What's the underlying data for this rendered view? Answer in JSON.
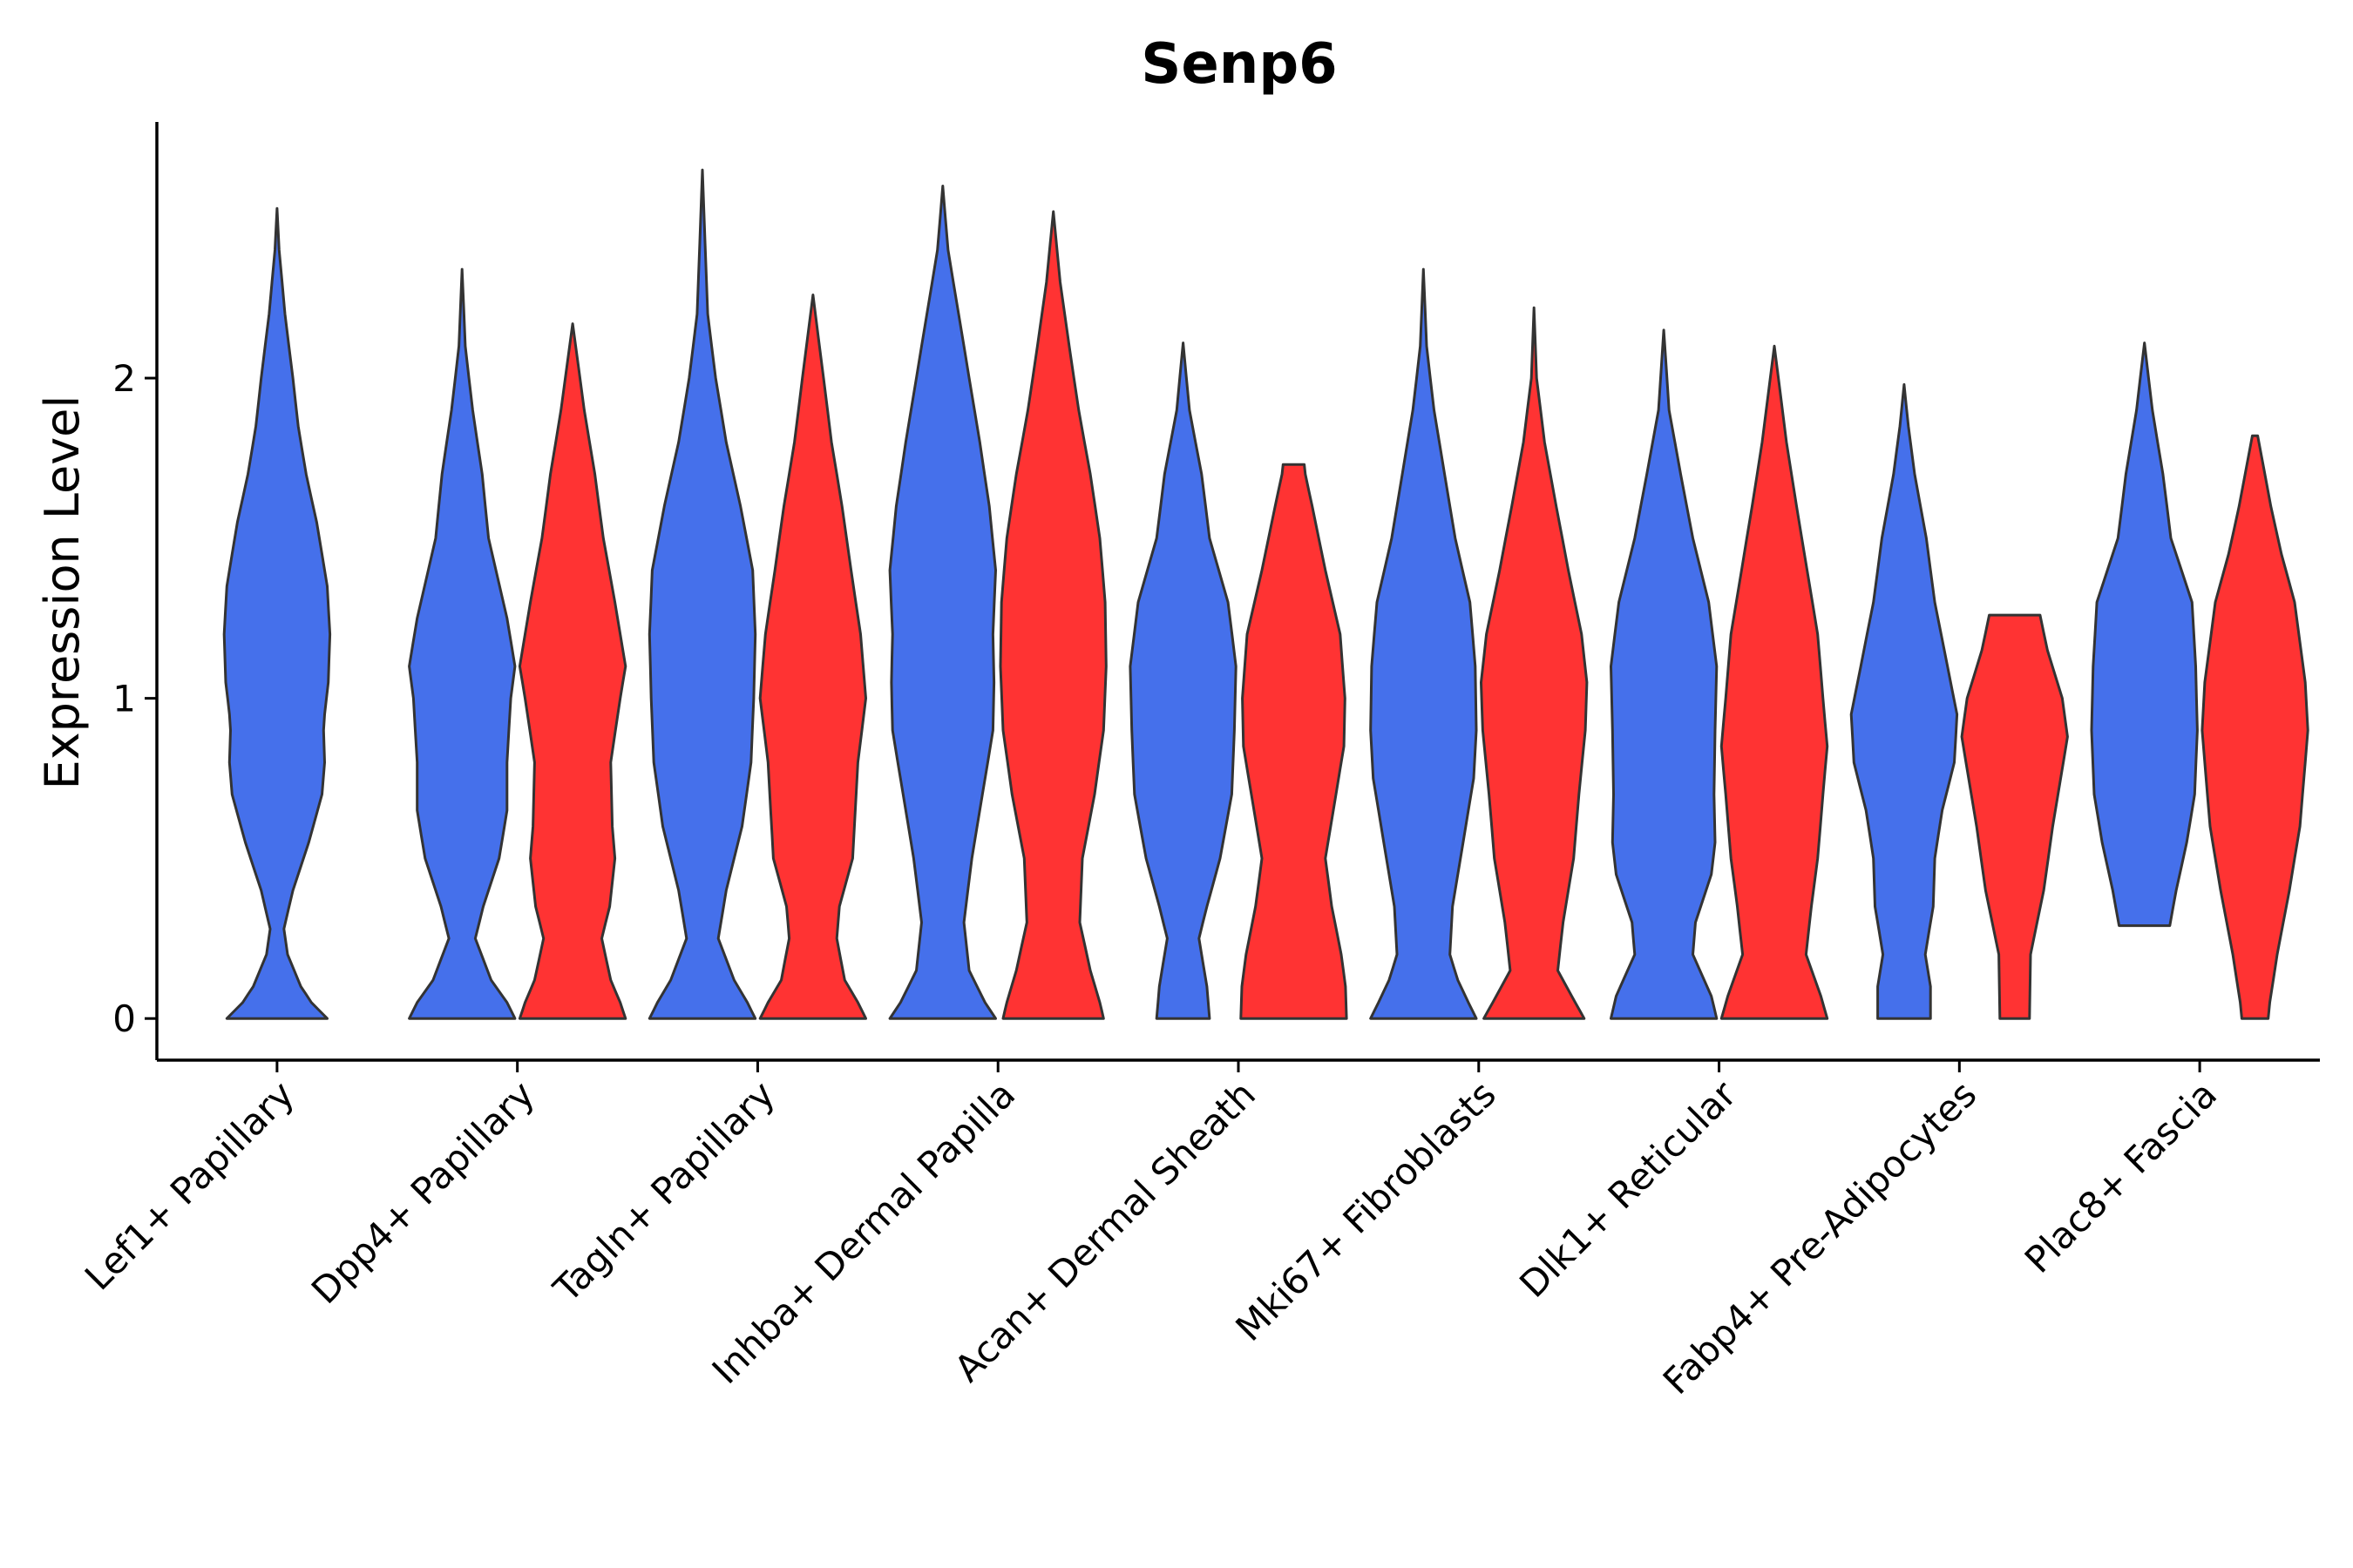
{
  "chart_data": {
    "type": "violin",
    "title": "Senp6",
    "xlabel": "",
    "ylabel": "Expression Level",
    "ylim": [
      -0.13,
      2.8
    ],
    "yticks": [
      0,
      1,
      2
    ],
    "group_colors": {
      "blue": "#4570EB",
      "red": "#FF3333"
    },
    "outline_color": "#333333",
    "categories": [
      "Lef1+ Papillary",
      "Dpp4+ Papillary",
      "Tagln+ Papillary",
      "Inhba+ Dermal Papilla",
      "Acan+ Dermal Sheath",
      "Mki67+ Fibroblasts",
      "Dlk1+ Reticular",
      "Fabp4+ Pre-Adipocytes",
      "Plac8+ Fascia"
    ],
    "violins": [
      {
        "category": "Lef1+ Papillary",
        "group": "blue",
        "min": 0,
        "max": 2.53,
        "profile": [
          [
            0,
            0.95
          ],
          [
            0.05,
            0.65
          ],
          [
            0.1,
            0.45
          ],
          [
            0.2,
            0.2
          ],
          [
            0.28,
            0.13
          ],
          [
            0.4,
            0.3
          ],
          [
            0.55,
            0.6
          ],
          [
            0.7,
            0.85
          ],
          [
            0.8,
            0.9
          ],
          [
            0.9,
            0.88
          ],
          [
            0.95,
            0.9
          ],
          [
            1.05,
            0.97
          ],
          [
            1.2,
            1.0
          ],
          [
            1.35,
            0.95
          ],
          [
            1.55,
            0.75
          ],
          [
            1.7,
            0.55
          ],
          [
            1.85,
            0.4
          ],
          [
            2.0,
            0.3
          ],
          [
            2.2,
            0.15
          ],
          [
            2.4,
            0.04
          ],
          [
            2.53,
            0.0
          ]
        ]
      },
      {
        "category": "Dpp4+ Papillary",
        "group": "blue",
        "min": 0,
        "max": 2.34,
        "profile": [
          [
            0,
            1.0
          ],
          [
            0.05,
            0.85
          ],
          [
            0.12,
            0.55
          ],
          [
            0.25,
            0.25
          ],
          [
            0.35,
            0.4
          ],
          [
            0.5,
            0.7
          ],
          [
            0.65,
            0.85
          ],
          [
            0.8,
            0.85
          ],
          [
            1.0,
            0.92
          ],
          [
            1.1,
            1.0
          ],
          [
            1.25,
            0.85
          ],
          [
            1.5,
            0.5
          ],
          [
            1.7,
            0.38
          ],
          [
            1.9,
            0.2
          ],
          [
            2.1,
            0.06
          ],
          [
            2.34,
            0.0
          ]
        ]
      },
      {
        "category": "Dpp4+ Papillary",
        "group": "red",
        "min": 0,
        "max": 2.17,
        "profile": [
          [
            0,
            1.0
          ],
          [
            0.05,
            0.9
          ],
          [
            0.12,
            0.72
          ],
          [
            0.25,
            0.55
          ],
          [
            0.35,
            0.7
          ],
          [
            0.5,
            0.8
          ],
          [
            0.6,
            0.75
          ],
          [
            0.8,
            0.72
          ],
          [
            1.0,
            0.9
          ],
          [
            1.1,
            1.0
          ],
          [
            1.3,
            0.8
          ],
          [
            1.5,
            0.58
          ],
          [
            1.7,
            0.42
          ],
          [
            1.9,
            0.22
          ],
          [
            2.17,
            0.0
          ]
        ]
      },
      {
        "category": "Tagln+ Papillary",
        "group": "blue",
        "min": 0,
        "max": 2.65,
        "profile": [
          [
            0,
            1.0
          ],
          [
            0.05,
            0.85
          ],
          [
            0.12,
            0.6
          ],
          [
            0.25,
            0.3
          ],
          [
            0.4,
            0.45
          ],
          [
            0.6,
            0.75
          ],
          [
            0.8,
            0.92
          ],
          [
            1.0,
            0.97
          ],
          [
            1.2,
            1.0
          ],
          [
            1.4,
            0.95
          ],
          [
            1.6,
            0.72
          ],
          [
            1.8,
            0.45
          ],
          [
            2.0,
            0.25
          ],
          [
            2.2,
            0.1
          ],
          [
            2.65,
            0.0
          ]
        ]
      },
      {
        "category": "Tagln+ Papillary",
        "group": "red",
        "min": 0,
        "max": 2.26,
        "profile": [
          [
            0,
            1.0
          ],
          [
            0.05,
            0.85
          ],
          [
            0.12,
            0.6
          ],
          [
            0.25,
            0.45
          ],
          [
            0.35,
            0.5
          ],
          [
            0.5,
            0.75
          ],
          [
            0.65,
            0.8
          ],
          [
            0.8,
            0.85
          ],
          [
            1.0,
            1.0
          ],
          [
            1.2,
            0.9
          ],
          [
            1.4,
            0.72
          ],
          [
            1.6,
            0.55
          ],
          [
            1.8,
            0.35
          ],
          [
            2.0,
            0.2
          ],
          [
            2.26,
            0.0
          ]
        ]
      },
      {
        "category": "Inhba+ Dermal Papilla",
        "group": "blue",
        "min": 0,
        "max": 2.6,
        "profile": [
          [
            0,
            1.0
          ],
          [
            0.05,
            0.8
          ],
          [
            0.15,
            0.5
          ],
          [
            0.3,
            0.4
          ],
          [
            0.5,
            0.55
          ],
          [
            0.7,
            0.75
          ],
          [
            0.9,
            0.95
          ],
          [
            1.05,
            0.97
          ],
          [
            1.2,
            0.95
          ],
          [
            1.4,
            1.0
          ],
          [
            1.6,
            0.88
          ],
          [
            1.8,
            0.7
          ],
          [
            2.0,
            0.5
          ],
          [
            2.2,
            0.3
          ],
          [
            2.4,
            0.1
          ],
          [
            2.6,
            0.0
          ]
        ]
      },
      {
        "category": "Inhba+ Dermal Papilla",
        "group": "red",
        "min": 0,
        "max": 2.52,
        "profile": [
          [
            0,
            0.95
          ],
          [
            0.05,
            0.88
          ],
          [
            0.15,
            0.7
          ],
          [
            0.3,
            0.5
          ],
          [
            0.5,
            0.55
          ],
          [
            0.7,
            0.78
          ],
          [
            0.9,
            0.95
          ],
          [
            1.1,
            1.0
          ],
          [
            1.3,
            0.98
          ],
          [
            1.5,
            0.88
          ],
          [
            1.7,
            0.7
          ],
          [
            1.9,
            0.48
          ],
          [
            2.1,
            0.3
          ],
          [
            2.3,
            0.13
          ],
          [
            2.52,
            0.0
          ]
        ]
      },
      {
        "category": "Acan+ Dermal Sheath",
        "group": "blue",
        "min": 0,
        "max": 2.11,
        "profile": [
          [
            0,
            0.5
          ],
          [
            0.1,
            0.45
          ],
          [
            0.25,
            0.3
          ],
          [
            0.35,
            0.45
          ],
          [
            0.5,
            0.7
          ],
          [
            0.7,
            0.92
          ],
          [
            0.9,
            0.97
          ],
          [
            1.1,
            1.0
          ],
          [
            1.3,
            0.85
          ],
          [
            1.5,
            0.5
          ],
          [
            1.7,
            0.35
          ],
          [
            1.9,
            0.12
          ],
          [
            2.11,
            0.0
          ]
        ]
      },
      {
        "category": "Acan+ Dermal Sheath",
        "group": "red",
        "min": 0,
        "max": 1.73,
        "profile": [
          [
            0,
            1.0
          ],
          [
            0.1,
            0.98
          ],
          [
            0.2,
            0.9
          ],
          [
            0.35,
            0.72
          ],
          [
            0.5,
            0.6
          ],
          [
            0.7,
            0.8
          ],
          [
            0.85,
            0.95
          ],
          [
            1.0,
            0.97
          ],
          [
            1.2,
            0.88
          ],
          [
            1.4,
            0.6
          ],
          [
            1.6,
            0.35
          ],
          [
            1.7,
            0.22
          ],
          [
            1.73,
            0.2
          ]
        ]
      },
      {
        "category": "Mki67+ Fibroblasts",
        "group": "blue",
        "min": 0,
        "max": 2.34,
        "profile": [
          [
            0,
            1.0
          ],
          [
            0.05,
            0.85
          ],
          [
            0.12,
            0.65
          ],
          [
            0.2,
            0.5
          ],
          [
            0.35,
            0.55
          ],
          [
            0.55,
            0.75
          ],
          [
            0.75,
            0.95
          ],
          [
            0.9,
            1.0
          ],
          [
            1.1,
            0.98
          ],
          [
            1.3,
            0.88
          ],
          [
            1.5,
            0.6
          ],
          [
            1.7,
            0.4
          ],
          [
            1.9,
            0.2
          ],
          [
            2.1,
            0.06
          ],
          [
            2.34,
            0.0
          ]
        ]
      },
      {
        "category": "Mki67+ Fibroblasts",
        "group": "red",
        "min": 0,
        "max": 2.22,
        "profile": [
          [
            0,
            0.95
          ],
          [
            0.05,
            0.78
          ],
          [
            0.15,
            0.45
          ],
          [
            0.3,
            0.55
          ],
          [
            0.5,
            0.75
          ],
          [
            0.7,
            0.85
          ],
          [
            0.9,
            0.97
          ],
          [
            1.05,
            1.0
          ],
          [
            1.2,
            0.9
          ],
          [
            1.4,
            0.65
          ],
          [
            1.6,
            0.42
          ],
          [
            1.8,
            0.2
          ],
          [
            2.0,
            0.05
          ],
          [
            2.22,
            0.0
          ]
        ]
      },
      {
        "category": "Dlk1+ Reticular",
        "group": "blue",
        "min": 0,
        "max": 2.15,
        "profile": [
          [
            0,
            1.0
          ],
          [
            0.07,
            0.9
          ],
          [
            0.2,
            0.55
          ],
          [
            0.3,
            0.6
          ],
          [
            0.45,
            0.9
          ],
          [
            0.55,
            0.97
          ],
          [
            0.7,
            0.95
          ],
          [
            0.9,
            0.97
          ],
          [
            1.1,
            1.0
          ],
          [
            1.3,
            0.85
          ],
          [
            1.5,
            0.55
          ],
          [
            1.7,
            0.32
          ],
          [
            1.9,
            0.1
          ],
          [
            2.15,
            0.0
          ]
        ]
      },
      {
        "category": "Dlk1+ Reticular",
        "group": "red",
        "min": 0,
        "max": 2.1,
        "profile": [
          [
            0,
            1.0
          ],
          [
            0.07,
            0.88
          ],
          [
            0.2,
            0.6
          ],
          [
            0.35,
            0.7
          ],
          [
            0.5,
            0.82
          ],
          [
            0.7,
            0.92
          ],
          [
            0.85,
            1.0
          ],
          [
            1.0,
            0.92
          ],
          [
            1.2,
            0.82
          ],
          [
            1.4,
            0.62
          ],
          [
            1.6,
            0.42
          ],
          [
            1.8,
            0.23
          ],
          [
            2.1,
            0.0
          ]
        ]
      },
      {
        "category": "Fabp4+ Pre-Adipocytes",
        "group": "blue",
        "min": 0,
        "max": 1.98,
        "profile": [
          [
            0,
            0.5
          ],
          [
            0.1,
            0.5
          ],
          [
            0.2,
            0.4
          ],
          [
            0.35,
            0.55
          ],
          [
            0.5,
            0.58
          ],
          [
            0.65,
            0.72
          ],
          [
            0.8,
            0.95
          ],
          [
            0.95,
            1.0
          ],
          [
            1.1,
            0.82
          ],
          [
            1.3,
            0.58
          ],
          [
            1.5,
            0.42
          ],
          [
            1.7,
            0.2
          ],
          [
            1.85,
            0.08
          ],
          [
            1.98,
            0.0
          ]
        ]
      },
      {
        "category": "Fabp4+ Pre-Adipocytes",
        "group": "red",
        "min": 0,
        "max": 1.26,
        "profile": [
          [
            0,
            0.28
          ],
          [
            0.2,
            0.3
          ],
          [
            0.4,
            0.55
          ],
          [
            0.6,
            0.72
          ],
          [
            0.8,
            0.92
          ],
          [
            0.88,
            1.0
          ],
          [
            1.0,
            0.9
          ],
          [
            1.15,
            0.62
          ],
          [
            1.26,
            0.48
          ]
        ]
      },
      {
        "category": "Plac8+ Fascia",
        "group": "blue",
        "min": 0.29,
        "max": 2.11,
        "profile": [
          [
            0.29,
            0.48
          ],
          [
            0.4,
            0.6
          ],
          [
            0.55,
            0.8
          ],
          [
            0.7,
            0.95
          ],
          [
            0.9,
            1.0
          ],
          [
            1.1,
            0.97
          ],
          [
            1.3,
            0.9
          ],
          [
            1.5,
            0.5
          ],
          [
            1.7,
            0.35
          ],
          [
            1.9,
            0.15
          ],
          [
            2.11,
            0.0
          ]
        ]
      },
      {
        "category": "Plac8+ Fascia",
        "group": "red",
        "min": 0,
        "max": 1.82,
        "profile": [
          [
            0,
            0.25
          ],
          [
            0.05,
            0.28
          ],
          [
            0.2,
            0.42
          ],
          [
            0.4,
            0.65
          ],
          [
            0.6,
            0.85
          ],
          [
            0.8,
            0.95
          ],
          [
            0.9,
            1.0
          ],
          [
            1.05,
            0.95
          ],
          [
            1.3,
            0.75
          ],
          [
            1.45,
            0.5
          ],
          [
            1.6,
            0.3
          ],
          [
            1.82,
            0.05
          ]
        ]
      }
    ]
  }
}
